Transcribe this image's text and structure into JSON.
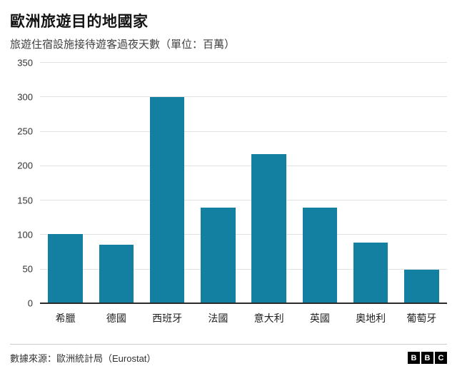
{
  "header": {
    "title": "歐洲旅遊目的地國家",
    "subtitle": "旅遊住宿設施接待遊客過夜天數（單位：百萬）"
  },
  "chart_data": {
    "type": "bar",
    "title": "歐洲旅遊目的地國家",
    "categories": [
      "希臘",
      "德國",
      "西班牙",
      "法國",
      "意大利",
      "英國",
      "奧地利",
      "葡萄牙"
    ],
    "values": [
      101,
      86,
      300,
      140,
      217,
      140,
      89,
      50
    ],
    "xlabel": "",
    "ylabel": "",
    "ylim": [
      0,
      350
    ],
    "yticks": [
      0,
      50,
      100,
      150,
      200,
      250,
      300,
      350
    ],
    "grid": true,
    "legend": "none",
    "bar_color": "#1380A1"
  },
  "footer": {
    "source": "數據來源：歐洲統計局（Eurostat）",
    "logo_letters": [
      "B",
      "B",
      "C"
    ]
  }
}
